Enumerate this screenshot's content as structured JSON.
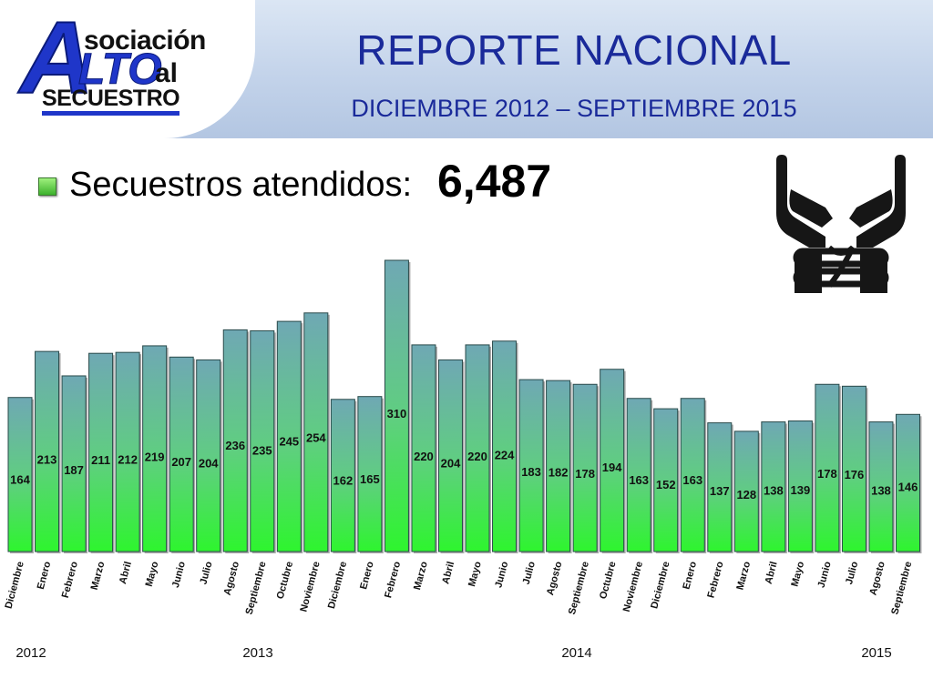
{
  "header": {
    "logo": {
      "a": "A",
      "sociacion": "sociación",
      "lto": "LTO",
      "al": "al",
      "secuestro": "SECUESTRO"
    },
    "title": "REPORTE NACIONAL",
    "subtitle": "DICIEMBRE 2012 – SEPTIEMBRE 2015"
  },
  "summary": {
    "label": "Secuestros atendidos:",
    "value": "6,487"
  },
  "icons": {
    "bullet": "green-square-bullet",
    "illustration": "handcuffed-hands-icon"
  },
  "colors": {
    "header_band": "#c3d3ea",
    "title_text": "#1a2a9a",
    "bar_top": "#6fa8b4",
    "bar_bottom": "#2ef52e",
    "bar_edge": "#2a4a4a"
  },
  "chart_data": {
    "type": "bar",
    "title": "",
    "xlabel": "",
    "ylabel": "",
    "ylim": [
      0,
      310
    ],
    "grid": false,
    "legend": "none",
    "categories": [
      "Diciembre",
      "Enero",
      "Febrero",
      "Marzo",
      "Abril",
      "Mayo",
      "Junio",
      "Julio",
      "Agosto",
      "Septiembre",
      "Octubre",
      "Noviembre",
      "Diciembre",
      "Enero",
      "Febrero",
      "Marzo",
      "Abril",
      "Mayo",
      "Junio",
      "Julio",
      "Agosto",
      "Septiembre",
      "Octubre",
      "Noviembre",
      "Diciembre",
      "Enero",
      "Febrero",
      "Marzo",
      "Abril",
      "Mayo",
      "Junio",
      "Julio",
      "Agosto",
      "Septiembre"
    ],
    "values": [
      164,
      213,
      187,
      211,
      212,
      219,
      207,
      204,
      236,
      235,
      245,
      254,
      162,
      165,
      310,
      220,
      204,
      220,
      224,
      183,
      182,
      178,
      194,
      163,
      152,
      163,
      137,
      128,
      138,
      139,
      178,
      176,
      138,
      146
    ],
    "year_labels": [
      {
        "label": "2012",
        "start_index": 0
      },
      {
        "label": "2013",
        "start_index": 1
      },
      {
        "label": "2014",
        "start_index": 13
      },
      {
        "label": "2015",
        "start_index": 25
      }
    ]
  }
}
